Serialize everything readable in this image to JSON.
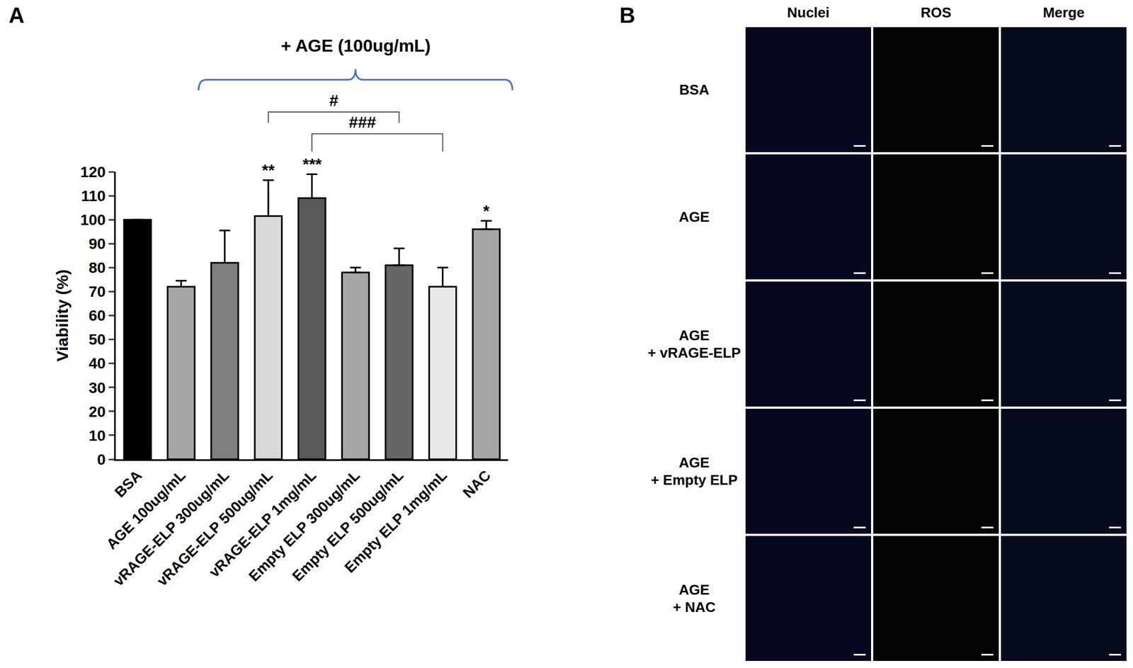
{
  "chart_data": {
    "type": "bar",
    "y_label": "Viability (%)",
    "categories": [
      "BSA",
      "AGE 100ug/mL",
      "vRAGE-ELP 300ug/mL",
      "vRAGE-ELP 500ug/mL",
      "vRAGE-ELP 1mg/mL",
      "Empty ELP 300ug/mL",
      "Empty ELP 500ug/mL",
      "Empty ELP 1mg/mL",
      "NAC"
    ],
    "values": [
      100,
      72,
      82,
      101.5,
      109,
      78,
      81,
      72,
      96
    ],
    "errors": [
      0,
      2.5,
      13.5,
      15,
      10,
      2,
      7,
      8,
      3.5
    ],
    "colors": [
      "#000000",
      "#a6a6a6",
      "#7f7f7f",
      "#d9d9d9",
      "#595959",
      "#a6a6a6",
      "#666666",
      "#e8e8e8",
      "#a6a6a6"
    ],
    "ylim": [
      0,
      120
    ],
    "yticks": [
      0,
      10,
      20,
      30,
      40,
      50,
      60,
      70,
      80,
      90,
      100,
      110,
      120
    ],
    "grid": false,
    "annotations": [
      {
        "text": "**",
        "category": "vRAGE-ELP 500ug/mL"
      },
      {
        "text": "***",
        "category": "vRAGE-ELP 1mg/mL"
      },
      {
        "text": "*",
        "category": "NAC"
      }
    ],
    "comparisons": [
      {
        "text": "#",
        "from": "vRAGE-ELP 500ug/mL",
        "to": "Empty ELP 500ug/mL"
      },
      {
        "text": "###",
        "from": "vRAGE-ELP 1mg/mL",
        "to": "Empty ELP 1mg/mL"
      }
    ],
    "brace": {
      "text": "+ AGE (100ug/mL)",
      "from": "AGE 100ug/mL",
      "to": "NAC",
      "color": "#4472c4"
    }
  },
  "panel_a": {
    "label": "A"
  },
  "panel_b": {
    "label": "B",
    "columns": [
      "Nuclei",
      "ROS",
      "Merge"
    ],
    "rows": [
      [
        "BSA"
      ],
      [
        "AGE"
      ],
      [
        "AGE",
        "+ vRAGE-ELP"
      ],
      [
        "AGE",
        "+ Empty ELP"
      ],
      [
        "AGE",
        "+ NAC"
      ]
    ]
  }
}
